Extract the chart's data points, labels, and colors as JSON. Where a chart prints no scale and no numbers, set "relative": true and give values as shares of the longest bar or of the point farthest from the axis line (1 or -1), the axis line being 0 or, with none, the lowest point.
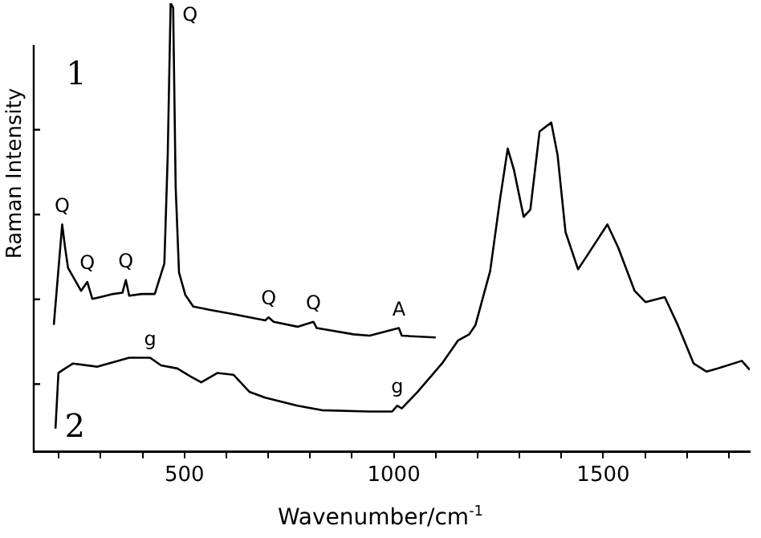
{
  "chart_data": {
    "type": "line",
    "relative": true,
    "xlabel": "Wavenumber/cm$^{-1}$",
    "ylabel": "Raman Intensity",
    "xlim": [
      140,
      1850
    ],
    "xticks": [
      {
        "value": 200,
        "label": null
      },
      {
        "value": 300,
        "label": null
      },
      {
        "value": 400,
        "label": null
      },
      500,
      {
        "value": 600,
        "label": null
      },
      {
        "value": 700,
        "label": null
      },
      {
        "value": 800,
        "label": null
      },
      {
        "value": 900,
        "label": null
      },
      1000,
      {
        "value": 1100,
        "label": null
      },
      {
        "value": 1200,
        "label": null
      },
      {
        "value": 1300,
        "label": null
      },
      {
        "value": 1400,
        "label": null
      },
      1500,
      {
        "value": 1600,
        "label": null
      },
      {
        "value": 1700,
        "label": null
      },
      {
        "value": 1800,
        "label": null
      }
    ],
    "grid": false,
    "legend": "left",
    "marker": "none",
    "line_style": "solid",
    "series": [
      {
        "name": "1",
        "color": "#000000",
        "x": [
          188,
          208,
          215,
          222,
          253,
          268,
          280,
          299,
          330,
          352,
          360,
          368,
          398,
          429,
          452,
          460,
          467,
          473,
          479,
          487,
          502,
          521,
          559,
          617,
          693,
          701,
          713,
          770,
          808,
          816,
          904,
          942,
          1012,
          1019,
          1100
        ],
        "values": [
          0.283,
          0.507,
          0.455,
          0.41,
          0.359,
          0.379,
          0.341,
          0.345,
          0.352,
          0.355,
          0.383,
          0.348,
          0.352,
          0.352,
          0.42,
          0.66,
          1.0,
          0.99,
          0.59,
          0.4,
          0.35,
          0.324,
          0.317,
          0.307,
          0.293,
          0.3,
          0.29,
          0.279,
          0.29,
          0.276,
          0.262,
          0.259,
          0.276,
          0.259,
          0.255
        ]
      },
      {
        "name": "2",
        "color": "#000000",
        "x": [
          192,
          199,
          215,
          234,
          291,
          368,
          418,
          444,
          483,
          513,
          540,
          579,
          617,
          655,
          693,
          770,
          828,
          942,
          996,
          1008,
          1019,
          1057,
          1115,
          1153,
          1180,
          1195,
          1230,
          1253,
          1272,
          1287,
          1310,
          1326,
          1348,
          1376,
          1391,
          1410,
          1440,
          1464,
          1510,
          1536,
          1575,
          1601,
          1647,
          1678,
          1716,
          1747,
          1774,
          1831,
          1850
        ],
        "values": [
          0.052,
          0.176,
          0.186,
          0.197,
          0.19,
          0.21,
          0.21,
          0.193,
          0.186,
          0.169,
          0.155,
          0.176,
          0.172,
          0.134,
          0.121,
          0.103,
          0.093,
          0.09,
          0.09,
          0.103,
          0.097,
          0.134,
          0.197,
          0.248,
          0.262,
          0.283,
          0.403,
          0.559,
          0.676,
          0.628,
          0.524,
          0.54,
          0.714,
          0.734,
          0.662,
          0.49,
          0.407,
          0.441,
          0.507,
          0.455,
          0.359,
          0.334,
          0.345,
          0.283,
          0.197,
          0.179,
          0.186,
          0.203,
          0.183
        ]
      }
    ],
    "annotations": [
      {
        "text": "Q",
        "x": 208,
        "y": 0.507
      },
      {
        "text": "Q",
        "x": 268,
        "y": 0.379
      },
      {
        "text": "Q",
        "x": 360,
        "y": 0.383
      },
      {
        "text": "Q",
        "x": 467,
        "y": 1.0
      },
      {
        "text": "Q",
        "x": 701,
        "y": 0.3
      },
      {
        "text": "Q",
        "x": 808,
        "y": 0.29
      },
      {
        "text": "A",
        "x": 1012,
        "y": 0.276
      },
      {
        "text": "g",
        "x": 418,
        "y": 0.21
      },
      {
        "text": "g",
        "x": 1008,
        "y": 0.103
      }
    ]
  }
}
